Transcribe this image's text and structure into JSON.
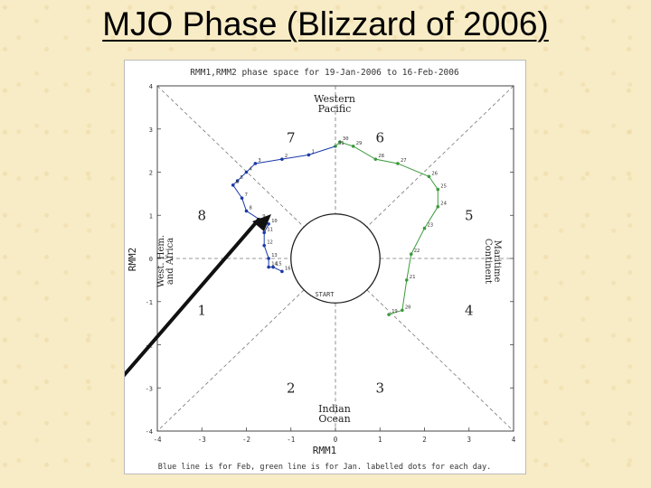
{
  "slide": {
    "title": "MJO Phase (Blizzard of 2006)"
  },
  "chart_data": {
    "type": "scatter",
    "title": "RMM1,RMM2 phase space for 19-Jan-2006 to 16-Feb-2006",
    "xlabel": "RMM1",
    "ylabel": "RMM2",
    "xlim": [
      -4,
      4
    ],
    "ylim": [
      -4,
      4
    ],
    "x_ticks": [
      "-4",
      "-3",
      "-2",
      "-1",
      "0",
      "1",
      "2",
      "3",
      "4"
    ],
    "y_ticks": [
      "4",
      "3",
      "2",
      "1",
      "0",
      "-1",
      "-2",
      "-3",
      "-4"
    ],
    "grid": "dashed phase-boundary lines",
    "phases": [
      "1",
      "2",
      "3",
      "4",
      "5",
      "6",
      "7",
      "8"
    ],
    "region_labels": {
      "top": "Western Pacific",
      "bottom": "Indian Ocean",
      "left": "West. Hem. and Africa",
      "right": "Maritime Continent"
    },
    "weak_circle_label": "START",
    "footer": "Blue line is for Feb, green line is for Jan. labelled dots for each day.",
    "colors": {
      "jan": "#3c9a3c",
      "feb": "#1b3aa8",
      "arrow": "#111111"
    },
    "series": [
      {
        "name": "Jan",
        "points": [
          {
            "x": 1.2,
            "y": -1.3,
            "label": "19"
          },
          {
            "x": 1.5,
            "y": -1.2,
            "label": "20"
          },
          {
            "x": 1.6,
            "y": -0.5,
            "label": "21"
          },
          {
            "x": 1.7,
            "y": 0.1,
            "label": "22"
          },
          {
            "x": 2.0,
            "y": 0.7,
            "label": "23"
          },
          {
            "x": 2.3,
            "y": 1.2,
            "label": "24"
          },
          {
            "x": 2.3,
            "y": 1.6,
            "label": "25"
          },
          {
            "x": 2.1,
            "y": 1.9,
            "label": "26"
          },
          {
            "x": 1.4,
            "y": 2.2,
            "label": "27"
          },
          {
            "x": 0.9,
            "y": 2.3,
            "label": "28"
          },
          {
            "x": 0.4,
            "y": 2.6,
            "label": "29"
          },
          {
            "x": 0.1,
            "y": 2.7,
            "label": "30"
          },
          {
            "x": 0.0,
            "y": 2.6,
            "label": "31"
          }
        ]
      },
      {
        "name": "Feb",
        "points": [
          {
            "x": -0.6,
            "y": 2.4,
            "label": "1"
          },
          {
            "x": -1.2,
            "y": 2.3,
            "label": "2"
          },
          {
            "x": -1.8,
            "y": 2.2,
            "label": "3"
          },
          {
            "x": -2.0,
            "y": 2.0,
            "label": "4"
          },
          {
            "x": -2.2,
            "y": 1.8,
            "label": "5"
          },
          {
            "x": -2.3,
            "y": 1.7,
            "label": "6"
          },
          {
            "x": -2.1,
            "y": 1.4,
            "label": "7"
          },
          {
            "x": -2.0,
            "y": 1.1,
            "label": "8"
          },
          {
            "x": -1.7,
            "y": 0.9,
            "label": "9"
          },
          {
            "x": -1.5,
            "y": 0.8,
            "label": "10"
          },
          {
            "x": -1.6,
            "y": 0.6,
            "label": "11"
          },
          {
            "x": -1.6,
            "y": 0.3,
            "label": "12"
          },
          {
            "x": -1.5,
            "y": 0.0,
            "label": "13"
          },
          {
            "x": -1.5,
            "y": -0.2,
            "label": "14"
          },
          {
            "x": -1.4,
            "y": -0.2,
            "label": "15"
          },
          {
            "x": -1.2,
            "y": -0.3,
            "label": "16"
          }
        ]
      }
    ]
  }
}
